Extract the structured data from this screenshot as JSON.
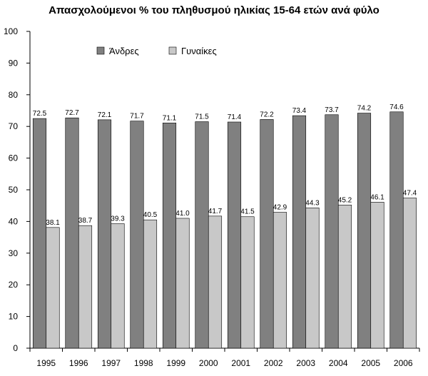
{
  "chart_data": {
    "type": "bar",
    "title": "Απασχολούμενοι % του πληθυσμού ηλικίας 15-64 ετών ανά φύλο",
    "categories": [
      "1995",
      "1996",
      "1997",
      "1998",
      "1999",
      "2000",
      "2001",
      "2002",
      "2003",
      "2004",
      "2005",
      "2006"
    ],
    "series": [
      {
        "name": "Άνδρες",
        "color": "#808080",
        "values": [
          72.5,
          72.7,
          72.1,
          71.7,
          71.1,
          71.5,
          71.4,
          72.2,
          73.4,
          73.7,
          74.2,
          74.6
        ],
        "labels": [
          "72.5",
          "72.7",
          "72.1",
          "71.7",
          "71.1",
          "71.5",
          "71.4",
          "72.2",
          "73.4",
          "73.7",
          "74.2",
          "74.6"
        ]
      },
      {
        "name": "Γυναίκες",
        "color": "#c8c8c8",
        "values": [
          38.1,
          38.7,
          39.3,
          40.5,
          41.0,
          41.7,
          41.5,
          42.9,
          44.3,
          45.2,
          46.1,
          47.4
        ],
        "labels": [
          "38.1",
          "38.7",
          "39.3",
          "40.5",
          "41.0",
          "41.7",
          "41.5",
          "42.9",
          "44.3",
          "45.2",
          "46.1",
          "47.4"
        ]
      }
    ],
    "ylim": [
      0,
      100
    ],
    "yticks": [
      0,
      10,
      20,
      30,
      40,
      50,
      60,
      70,
      80,
      90,
      100
    ],
    "xlabel": "",
    "ylabel": "",
    "grid": false,
    "legend": "top-left inside"
  }
}
